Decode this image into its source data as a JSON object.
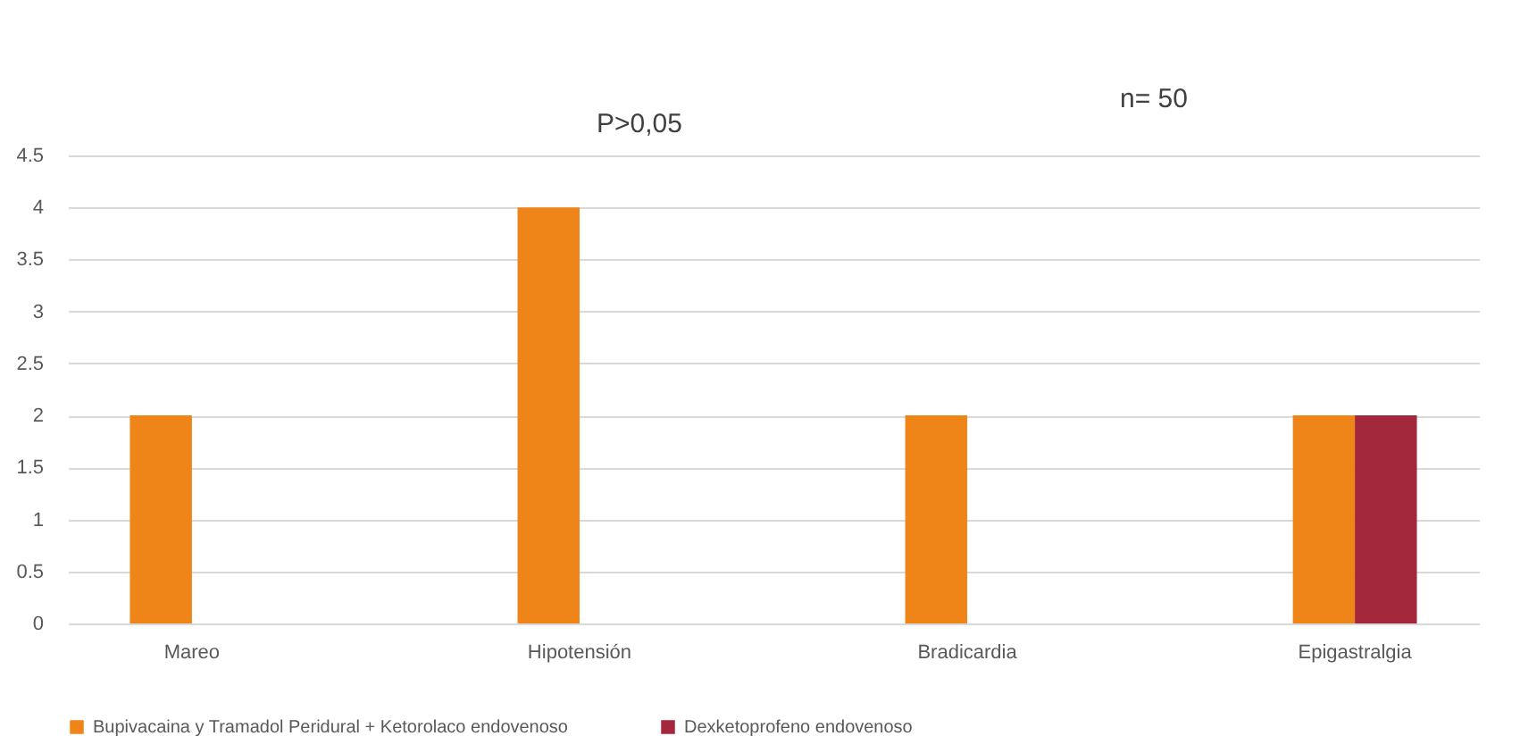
{
  "chart_data": {
    "type": "bar",
    "categories": [
      "Mareo",
      "Hipotensión",
      "Bradicardia",
      "Epigastralgia"
    ],
    "series": [
      {
        "name": "Bupivacaina y Tramadol Peridural + Ketorolaco endovenoso",
        "color": "#ef8418",
        "values": [
          2,
          4,
          2,
          2
        ]
      },
      {
        "name": "Dexketoprofeno endovenoso",
        "color": "#a3283c",
        "values": [
          0,
          0,
          0,
          2
        ]
      }
    ],
    "ylim": [
      0,
      4.5
    ],
    "yticks": [
      0,
      {
        "value": 0.5,
        "label": "0.5"
      },
      1,
      {
        "value": 1.5,
        "label": "1.5"
      },
      2,
      {
        "value": 2.5,
        "label": "2.5"
      },
      3,
      {
        "value": 3.5,
        "label": "3.5"
      },
      4,
      {
        "value": 4.5,
        "label": "4.5"
      }
    ],
    "grid": "y",
    "legend": "bottom",
    "annotations": [
      "P>0,05",
      "n= 50"
    ]
  }
}
